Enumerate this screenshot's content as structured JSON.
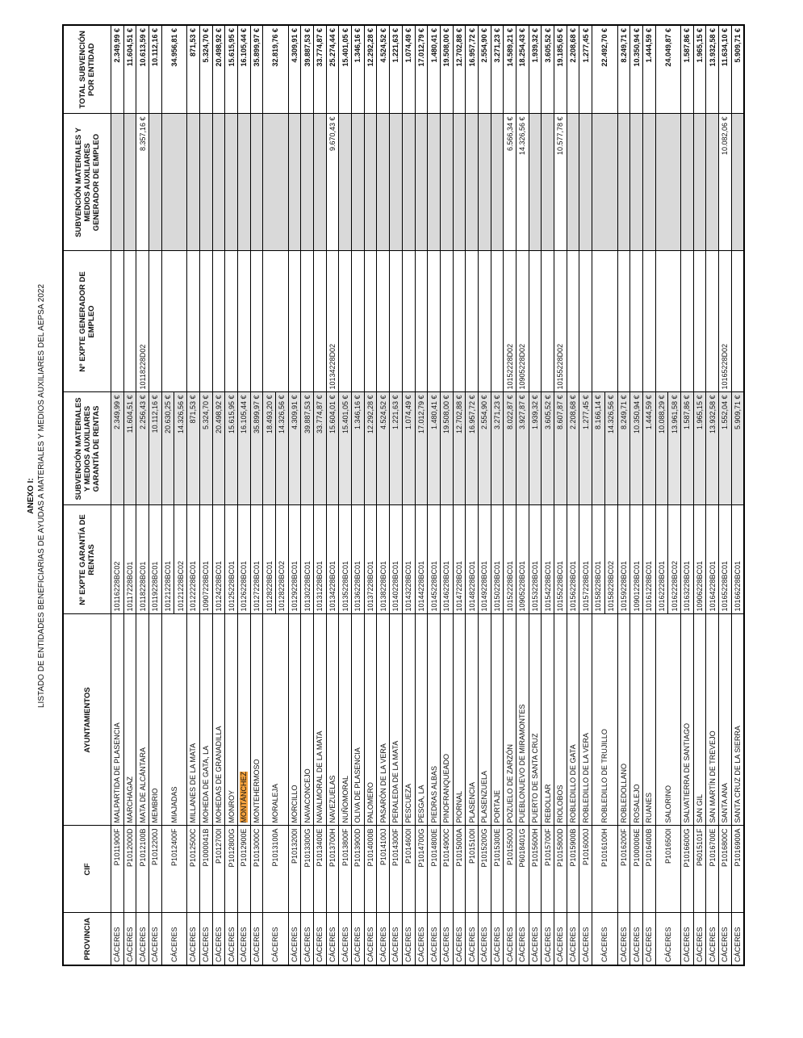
{
  "header": {
    "title": "ANEXO I:",
    "subtitle": "LISTADO DE ENTIDADES BENEFICIARIAS DE AYUDAS A MATERIALES Y MEDIOS AUXILIARES DEL AEPSA 2022"
  },
  "table": {
    "columns": [
      "PROVINCIA",
      "CIF",
      "AYUNTAMIENTOS",
      "Nº EXPTE GARANTÍA DE RENTAS",
      "SUBVENCIÓN MATERIALES Y MEDIOS AUXILIARES GARANTÍA DE RENTAS",
      "Nº EXPTE GENERADOR DE EMPLEO",
      "SUBVENCIÓN MATERIALES Y MEDIOS AUXILIARES GENERADOR DE EMPLEO",
      "TOTAL SUBVENCIÓN POR ENTIDAD"
    ],
    "rows": [
      {
        "provincia": "CÁCERES",
        "cif": "P1011900F",
        "ayuntamiento": "MALPARTIDA DE PLASENCIA",
        "gr": [
          {
            "expte": "10116228BC02",
            "subvencion": "2.349,99 €"
          }
        ],
        "total": "2.349,99 €"
      },
      {
        "provincia": "CÁCERES",
        "cif": "P1012000D",
        "ayuntamiento": "MARCHAGAZ",
        "gr": [
          {
            "expte": "10117228BC01",
            "subvencion": "11.604,51 €"
          }
        ],
        "total": "11.604,51 €"
      },
      {
        "provincia": "CÁCERES",
        "cif": "P1012100B",
        "ayuntamiento": "MATA DE ALCÁNTARA",
        "gr": [
          {
            "expte": "10118228BC01",
            "subvencion": "2.256,43 €"
          }
        ],
        "ge": {
          "expte": "10118228D02",
          "subvencion": "8.357,16 €"
        },
        "total": "10.613,59 €"
      },
      {
        "provincia": "CÁCERES",
        "cif": "P1012200J",
        "ayuntamiento": "MEMBRIO",
        "gr": [
          {
            "expte": "10119228BC01",
            "subvencion": "10.112,16 €"
          }
        ],
        "total": "10.112,16 €"
      },
      {
        "provincia": "CÁCERES",
        "cif": "P1012400F",
        "ayuntamiento": "MIAJADAS",
        "gr": [
          {
            "expte": "10121228BC01",
            "subvencion": "20.630,25 €"
          },
          {
            "expte": "10121228BC02",
            "subvencion": "14.326,56 €"
          }
        ],
        "total": "34.956,81 €"
      },
      {
        "provincia": "CÁCERES",
        "cif": "P1012500C",
        "ayuntamiento": "MILLANES DE LA MATA",
        "gr": [
          {
            "expte": "10122228BC01",
            "subvencion": "871,53 €"
          }
        ],
        "total": "871,53 €"
      },
      {
        "provincia": "CÁCERES",
        "cif": "P1000041B",
        "ayuntamiento": "MOHEDA DE GATA, LA",
        "gr": [
          {
            "expte": "10907228BC01",
            "subvencion": "5.324,70 €"
          }
        ],
        "total": "5.324,70 €"
      },
      {
        "provincia": "CÁCERES",
        "cif": "P1012700I",
        "ayuntamiento": "MOHEDAS DE GRANADILLA",
        "gr": [
          {
            "expte": "10124228BC01",
            "subvencion": "20.498,92 €"
          }
        ],
        "total": "20.498,92 €"
      },
      {
        "provincia": "CÁCERES",
        "cif": "P1012800G",
        "ayuntamiento": "MONROY",
        "gr": [
          {
            "expte": "10125228BC01",
            "subvencion": "15.615,95 €"
          }
        ],
        "total": "15.615,95 €"
      },
      {
        "provincia": "CÁCERES",
        "cif": "P1012900E",
        "ayuntamiento": "MONTÁNCHEZ",
        "highlighted": true,
        "gr": [
          {
            "expte": "10126228BC01",
            "subvencion": "16.105,44 €"
          }
        ],
        "total": "16.105,44 €"
      },
      {
        "provincia": "CÁCERES",
        "cif": "P1013000C",
        "ayuntamiento": "MONTEHERMOSO",
        "gr": [
          {
            "expte": "10127228BC01",
            "subvencion": "35.899,97 €"
          }
        ],
        "total": "35.899,97 €"
      },
      {
        "provincia": "CÁCERES",
        "cif": "P1013100A",
        "ayuntamiento": "MORALEJA",
        "gr": [
          {
            "expte": "10128228BC01",
            "subvencion": "18.493,20 €"
          },
          {
            "expte": "10128228BC02",
            "subvencion": "14.326,56 €"
          }
        ],
        "total": "32.819,76 €"
      },
      {
        "provincia": "CÁCERES",
        "cif": "P1013200I",
        "ayuntamiento": "MORCILLO",
        "gr": [
          {
            "expte": "10129228BC01",
            "subvencion": "4.309,91 €"
          }
        ],
        "total": "4.309,91 €"
      },
      {
        "provincia": "CÁCERES",
        "cif": "P1013300G",
        "ayuntamiento": "NAVACONCEJO",
        "gr": [
          {
            "expte": "10130228BC01",
            "subvencion": "39.887,53 €"
          }
        ],
        "total": "39.887,53 €"
      },
      {
        "provincia": "CÁCERES",
        "cif": "P1013400E",
        "ayuntamiento": "NAVALMORAL DE LA MATA",
        "gr": [
          {
            "expte": "10131228BC01",
            "subvencion": "33.774,87 €"
          }
        ],
        "total": "33.774,87 €"
      },
      {
        "provincia": "CÁCERES",
        "cif": "P1013700H",
        "ayuntamiento": "NAVEZUELAS",
        "gr": [
          {
            "expte": "10134228BC01",
            "subvencion": "15.604,01 €"
          }
        ],
        "ge": {
          "expte": "10134228D02",
          "subvencion": "9.670,43 €"
        },
        "total": "25.274,44 €"
      },
      {
        "provincia": "CÁCERES",
        "cif": "P1013800F",
        "ayuntamiento": "NUÑOMORAL",
        "gr": [
          {
            "expte": "10135228BC01",
            "subvencion": "15.401,05 €"
          }
        ],
        "total": "15.401,05 €"
      },
      {
        "provincia": "CÁCERES",
        "cif": "P1013900D",
        "ayuntamiento": "OLIVA DE PLASENCIA",
        "gr": [
          {
            "expte": "10136228BC01",
            "subvencion": "1.346,16 €"
          }
        ],
        "total": "1.346,16 €"
      },
      {
        "provincia": "CÁCERES",
        "cif": "P1014000B",
        "ayuntamiento": "PALOMERO",
        "gr": [
          {
            "expte": "10137228BC01",
            "subvencion": "12.292,28 €"
          }
        ],
        "total": "12.292,28 €"
      },
      {
        "provincia": "CÁCERES",
        "cif": "P1014100J",
        "ayuntamiento": "PASARÓN DE LA VERA",
        "gr": [
          {
            "expte": "10138228BC01",
            "subvencion": "4.524,52 €"
          }
        ],
        "total": "4.524,52 €"
      },
      {
        "provincia": "CÁCERES",
        "cif": "P1014300F",
        "ayuntamiento": "PERALEDA DE LA MATA",
        "gr": [
          {
            "expte": "10140228BC01",
            "subvencion": "1.221,63 €"
          }
        ],
        "total": "1.221,63 €"
      },
      {
        "provincia": "CÁCERES",
        "cif": "P1014600I",
        "ayuntamiento": "PESCUEZA",
        "gr": [
          {
            "expte": "10143228BC01",
            "subvencion": "1.074,49 €"
          }
        ],
        "total": "1.074,49 €"
      },
      {
        "provincia": "CÁCERES",
        "cif": "P1014700G",
        "ayuntamiento": "PESGA, LA",
        "gr": [
          {
            "expte": "10144228BC01",
            "subvencion": "17.012,79 €"
          }
        ],
        "total": "17.012,79 €"
      },
      {
        "provincia": "CÁCERES",
        "cif": "P1014800E",
        "ayuntamiento": "PIEDRAS ALBAS",
        "gr": [
          {
            "expte": "10145228BC01",
            "subvencion": "1.480,41 €"
          }
        ],
        "total": "1.480,41 €"
      },
      {
        "provincia": "CÁCERES",
        "cif": "P1014900C",
        "ayuntamiento": "PINOFRANQUEADO",
        "gr": [
          {
            "expte": "10146228BC01",
            "subvencion": "19.508,00 €"
          }
        ],
        "total": "19.508,00 €"
      },
      {
        "provincia": "CÁCERES",
        "cif": "P1015000A",
        "ayuntamiento": "PIORNAL",
        "gr": [
          {
            "expte": "10147228BC01",
            "subvencion": "12.702,88 €"
          }
        ],
        "total": "12.702,88 €"
      },
      {
        "provincia": "CÁCERES",
        "cif": "P1015100I",
        "ayuntamiento": "PLASENCIA",
        "gr": [
          {
            "expte": "10148228BC01",
            "subvencion": "16.957,72 €"
          }
        ],
        "total": "16.957,72 €"
      },
      {
        "provincia": "CÁCERES",
        "cif": "P1015200G",
        "ayuntamiento": "PLASENZUELA",
        "gr": [
          {
            "expte": "10149228BC01",
            "subvencion": "2.554,90 €"
          }
        ],
        "total": "2.554,90 €"
      },
      {
        "provincia": "CÁCERES",
        "cif": "P1015300E",
        "ayuntamiento": "PORTAJE",
        "gr": [
          {
            "expte": "10150228BC01",
            "subvencion": "3.271,23 €"
          }
        ],
        "total": "3.271,23 €"
      },
      {
        "provincia": "CÁCERES",
        "cif": "P1015500J",
        "ayuntamiento": "POZUELO DE ZARZÓN",
        "gr": [
          {
            "expte": "10152228BC01",
            "subvencion": "8.022,87 €"
          }
        ],
        "ge": {
          "expte": "10152228D02",
          "subvencion": "6.566,34 €"
        },
        "total": "14.589,21 €"
      },
      {
        "provincia": "CÁCERES",
        "cif": "P6018401G",
        "ayuntamiento": "PUEBLONUEVO DE MIRAMONTES",
        "gr": [
          {
            "expte": "10905228BC01",
            "subvencion": "3.927,87 €"
          }
        ],
        "ge": {
          "expte": "10905228D02",
          "subvencion": "14.326,56 €"
        },
        "total": "18.254,43 €"
      },
      {
        "provincia": "CÁCERES",
        "cif": "P1015600H",
        "ayuntamiento": "PUERTO DE SANTA CRUZ",
        "gr": [
          {
            "expte": "10153228BC01",
            "subvencion": "1.939,32 €"
          }
        ],
        "total": "1.939,32 €"
      },
      {
        "provincia": "CÁCERES",
        "cif": "P1015700F",
        "ayuntamiento": "REBOLLAR",
        "gr": [
          {
            "expte": "10154228BC01",
            "subvencion": "3.605,52 €"
          }
        ],
        "total": "3.605,52 €"
      },
      {
        "provincia": "CÁCERES",
        "cif": "P1015800D",
        "ayuntamiento": "RIOLOBOS",
        "gr": [
          {
            "expte": "10155228BC01",
            "subvencion": "8.607,87 €"
          }
        ],
        "ge": {
          "expte": "10155228D02",
          "subvencion": "10.577,78 €"
        },
        "total": "19.185,65 €"
      },
      {
        "provincia": "CÁCERES",
        "cif": "P1015900B",
        "ayuntamiento": "ROBLEDILLO DE GATA",
        "gr": [
          {
            "expte": "10156228BC01",
            "subvencion": "2.208,68 €"
          }
        ],
        "total": "2.208,68 €"
      },
      {
        "provincia": "CÁCERES",
        "cif": "P1016000J",
        "ayuntamiento": "ROBLEDILLO DE LA VERA",
        "gr": [
          {
            "expte": "10157228BC01",
            "subvencion": "1.277,45 €"
          }
        ],
        "total": "1.277,45 €"
      },
      {
        "provincia": "CÁCERES",
        "cif": "P1016100H",
        "ayuntamiento": "ROBLEDILLO DE TRUJILLO",
        "gr": [
          {
            "expte": "10158228BC01",
            "subvencion": "8.166,14 €"
          },
          {
            "expte": "10158228BC02",
            "subvencion": "14.326,56 €"
          }
        ],
        "total": "22.492,70 €"
      },
      {
        "provincia": "CÁCERES",
        "cif": "P1016200F",
        "ayuntamiento": "ROBLEDOLLANO",
        "gr": [
          {
            "expte": "10159228BC01",
            "subvencion": "8.249,71 €"
          }
        ],
        "total": "8.249,71 €"
      },
      {
        "provincia": "CÁCERES",
        "cif": "P1000006E",
        "ayuntamiento": "ROSALEJO",
        "gr": [
          {
            "expte": "10901228BC01",
            "subvencion": "10.350,94 €"
          }
        ],
        "total": "10.350,94 €"
      },
      {
        "provincia": "CÁCERES",
        "cif": "P1016400B",
        "ayuntamiento": "RUANES",
        "gr": [
          {
            "expte": "10161228BC01",
            "subvencion": "1.444,59 €"
          }
        ],
        "total": "1.444,59 €"
      },
      {
        "provincia": "CÁCERES",
        "cif": "P1016500I",
        "ayuntamiento": "SALORINO",
        "gr": [
          {
            "expte": "10162228BC01",
            "subvencion": "10.088,29 €"
          },
          {
            "expte": "10162228BC02",
            "subvencion": "13.961,58 €"
          }
        ],
        "total": "24.049,87 €"
      },
      {
        "provincia": "CÁCERES",
        "cif": "P1016600G",
        "ayuntamiento": "SALVATIERRA DE SANTIAGO",
        "gr": [
          {
            "expte": "10163228BC01",
            "subvencion": "1.587,86 €"
          }
        ],
        "total": "1.587,86 €"
      },
      {
        "provincia": "CÁCERES",
        "cif": "P6015101F",
        "ayuntamiento": "SAN GIL",
        "gr": [
          {
            "expte": "10906228BC01",
            "subvencion": "1.965,15 €"
          }
        ],
        "total": "1.965,15 €"
      },
      {
        "provincia": "CÁCERES",
        "cif": "P1016700E",
        "ayuntamiento": "SAN MARTÍN DE TREVEJO",
        "gr": [
          {
            "expte": "10164228BC01",
            "subvencion": "13.932,58 €"
          }
        ],
        "total": "13.932,58 €"
      },
      {
        "provincia": "CÁCERES",
        "cif": "P1016800C",
        "ayuntamiento": "SANTA ANA",
        "gr": [
          {
            "expte": "10165228BC01",
            "subvencion": "1.552,04 €"
          }
        ],
        "ge": {
          "expte": "10165228D02",
          "subvencion": "10.082,06 €"
        },
        "total": "11.634,10 €"
      },
      {
        "provincia": "CÁCERES",
        "cif": "P1016900A",
        "ayuntamiento": "SANTA CRUZ DE LA SIERRA",
        "gr": [
          {
            "expte": "10166228BC01",
            "subvencion": "5.909,71 €"
          }
        ],
        "total": "5.909,71 €"
      }
    ]
  }
}
